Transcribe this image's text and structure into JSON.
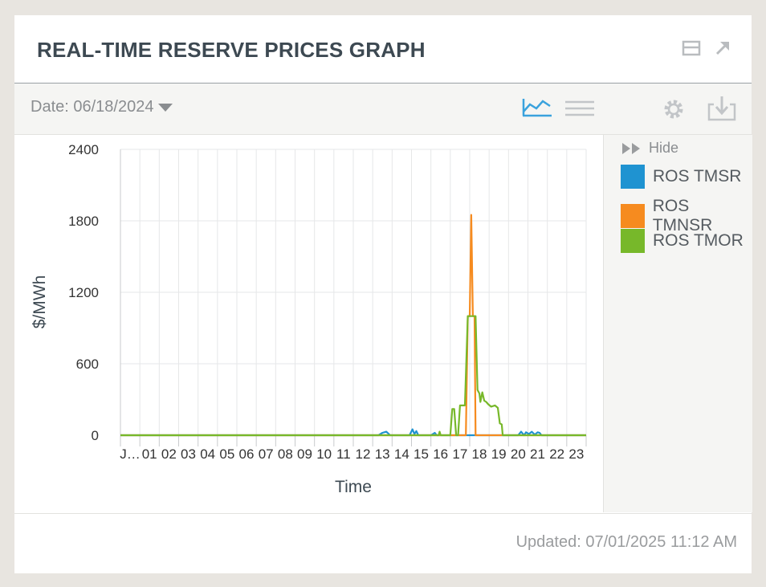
{
  "title": "REAL-TIME RESERVE PRICES GRAPH",
  "toolbar": {
    "date_label": "Date: 06/18/2024"
  },
  "legend": {
    "hide_label": "Hide",
    "items": [
      {
        "label": "ROS TMSR",
        "color": "#1f93d1"
      },
      {
        "label": "ROS TMNSR",
        "color": "#f68b1f"
      },
      {
        "label": "ROS TMOR",
        "color": "#77b82a"
      }
    ]
  },
  "footer": {
    "updated": "Updated: 07/01/2025 11:12 AM"
  },
  "icons": [
    "minimize-icon",
    "expand-icon",
    "line-chart-icon",
    "table-view-icon",
    "gear-icon",
    "download-icon",
    "double-chevron-right-icon"
  ],
  "chart_data": {
    "type": "line",
    "xlabel": "Time",
    "ylabel": "$/MWh",
    "ylim": [
      0,
      2400
    ],
    "xlim": [
      0,
      24
    ],
    "yticks": [
      0,
      600,
      1200,
      1800,
      2400
    ],
    "xtick_labels": [
      "J…",
      "01",
      "02",
      "03",
      "04",
      "05",
      "06",
      "07",
      "08",
      "09",
      "10",
      "11",
      "12",
      "13",
      "14",
      "15",
      "16",
      "17",
      "18",
      "19",
      "20",
      "21",
      "22",
      "23"
    ],
    "grid": true,
    "legend_position": "right",
    "series": [
      {
        "name": "ROS TMSR",
        "color": "#1f93d1",
        "points": [
          [
            0,
            0
          ],
          [
            13.3,
            0
          ],
          [
            13.5,
            20
          ],
          [
            13.7,
            30
          ],
          [
            13.9,
            0
          ],
          [
            14.9,
            0
          ],
          [
            15.05,
            50
          ],
          [
            15.15,
            10
          ],
          [
            15.25,
            35
          ],
          [
            15.35,
            0
          ],
          [
            16.0,
            0
          ],
          [
            16.2,
            20
          ],
          [
            16.3,
            0
          ],
          [
            20.5,
            0
          ],
          [
            20.65,
            30
          ],
          [
            20.8,
            0
          ],
          [
            20.9,
            25
          ],
          [
            21.05,
            10
          ],
          [
            21.2,
            30
          ],
          [
            21.35,
            5
          ],
          [
            21.5,
            25
          ],
          [
            21.6,
            20
          ],
          [
            21.7,
            0
          ],
          [
            24,
            0
          ]
        ]
      },
      {
        "name": "ROS TMNSR",
        "color": "#f68b1f",
        "points": [
          [
            0,
            0
          ],
          [
            17.8,
            0
          ],
          [
            17.9,
            1000
          ],
          [
            18.0,
            1000
          ],
          [
            18.08,
            1850
          ],
          [
            18.16,
            1000
          ],
          [
            18.25,
            1000
          ],
          [
            18.3,
            0
          ],
          [
            24,
            0
          ]
        ]
      },
      {
        "name": "ROS TMOR",
        "color": "#77b82a",
        "points": [
          [
            0,
            0
          ],
          [
            16.4,
            0
          ],
          [
            16.45,
            30
          ],
          [
            16.5,
            0
          ],
          [
            17.0,
            0
          ],
          [
            17.1,
            220
          ],
          [
            17.2,
            220
          ],
          [
            17.3,
            0
          ],
          [
            17.4,
            0
          ],
          [
            17.5,
            250
          ],
          [
            17.75,
            250
          ],
          [
            17.9,
            1000
          ],
          [
            18.3,
            1000
          ],
          [
            18.4,
            380
          ],
          [
            18.5,
            350
          ],
          [
            18.55,
            280
          ],
          [
            18.65,
            360
          ],
          [
            18.75,
            290
          ],
          [
            18.85,
            280
          ],
          [
            18.95,
            260
          ],
          [
            19.1,
            240
          ],
          [
            19.3,
            250
          ],
          [
            19.45,
            230
          ],
          [
            19.55,
            100
          ],
          [
            19.65,
            90
          ],
          [
            19.7,
            0
          ],
          [
            24,
            0
          ]
        ]
      }
    ]
  }
}
